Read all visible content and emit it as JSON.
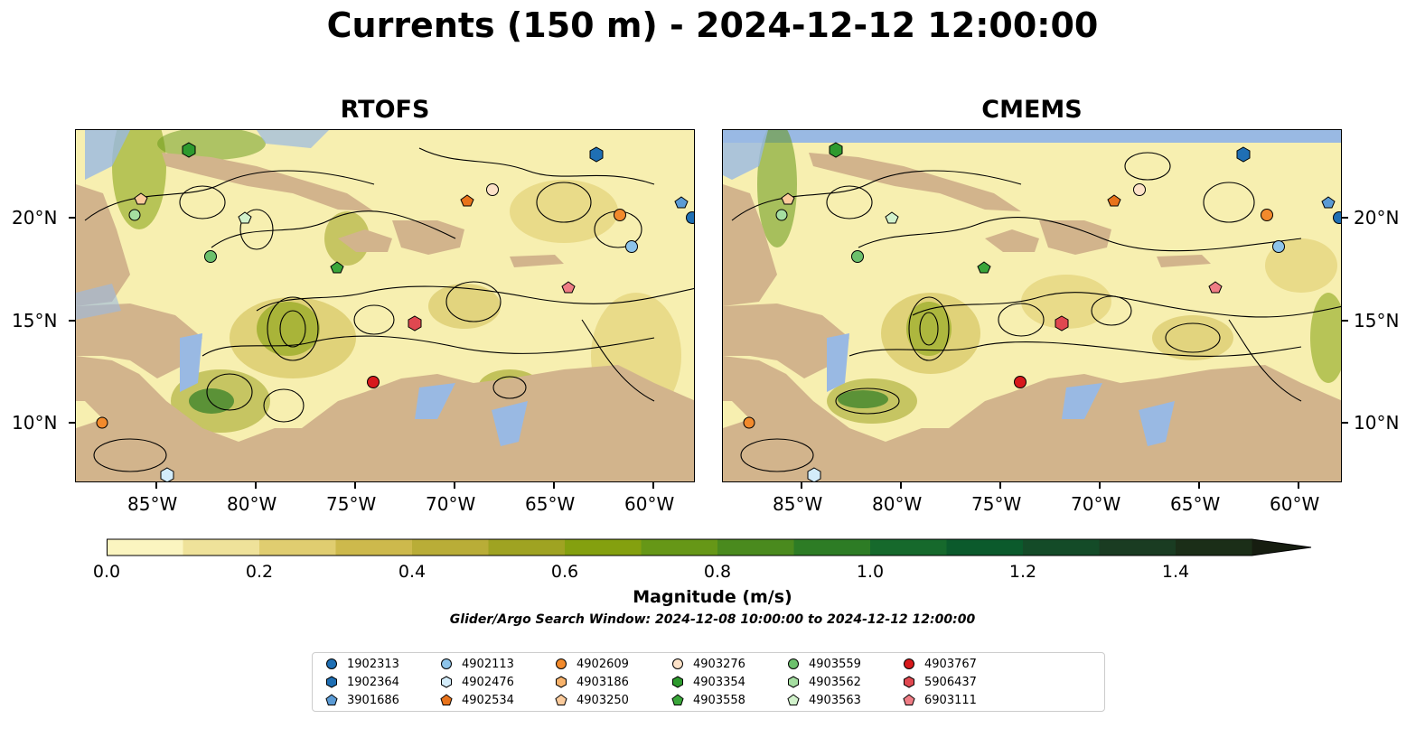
{
  "title": "Currents (150 m) - 2024-12-12 12:00:00",
  "panels": [
    {
      "title": "RTOFS"
    },
    {
      "title": "CMEMS"
    }
  ],
  "axes": {
    "lon_ticks": [
      "85°W",
      "80°W",
      "75°W",
      "70°W",
      "65°W",
      "60°W"
    ],
    "lat_ticks": [
      "20°N",
      "15°N",
      "10°N"
    ]
  },
  "colorbar": {
    "title": "Magnitude (m/s)",
    "tick_labels": [
      "0.0",
      "0.2",
      "0.4",
      "0.6",
      "0.8",
      "1.0",
      "1.2",
      "1.4"
    ],
    "colors": [
      "#fbf5c0",
      "#efe29a",
      "#e0cd70",
      "#cdb94c",
      "#b9ad37",
      "#9fa322",
      "#84a00f",
      "#669717",
      "#4a8a1e",
      "#2d7c25",
      "#16692c",
      "#0b5a2c",
      "#144b28",
      "#1a3c22",
      "#1b2e18",
      "#161d10"
    ],
    "extend": "max"
  },
  "search_window": "Glider/Argo Search Window: 2024-12-08 10:00:00 to 2024-12-12 12:00:00",
  "legend": [
    {
      "label": "1902313",
      "marker": "circle",
      "color": "#1f6fb4"
    },
    {
      "label": "1902364",
      "marker": "hexagon",
      "color": "#1f6fb4"
    },
    {
      "label": "3901686",
      "marker": "pentagon",
      "color": "#5b9bd5"
    },
    {
      "label": "4902113",
      "marker": "circle",
      "color": "#8dc4ea"
    },
    {
      "label": "4902476",
      "marker": "hexagon",
      "color": "#d3ecfa"
    },
    {
      "label": "4902534",
      "marker": "pentagon",
      "color": "#e8731b"
    },
    {
      "label": "4902609",
      "marker": "circle",
      "color": "#f28a2c"
    },
    {
      "label": "4903186",
      "marker": "hexagon",
      "color": "#f7b26b"
    },
    {
      "label": "4903250",
      "marker": "pentagon",
      "color": "#fbcb9c"
    },
    {
      "label": "4903276",
      "marker": "circle",
      "color": "#fde2c8"
    },
    {
      "label": "4903354",
      "marker": "hexagon",
      "color": "#2e9a2e"
    },
    {
      "label": "4903558",
      "marker": "pentagon",
      "color": "#3aa63a"
    },
    {
      "label": "4903559",
      "marker": "circle",
      "color": "#6cc06c"
    },
    {
      "label": "4903562",
      "marker": "hexagon",
      "color": "#a5dea1"
    },
    {
      "label": "4903563",
      "marker": "pentagon",
      "color": "#d2f2cc"
    },
    {
      "label": "4903767",
      "marker": "circle",
      "color": "#d7191c"
    },
    {
      "label": "5906437",
      "marker": "hexagon",
      "color": "#e04850"
    },
    {
      "label": "6903111",
      "marker": "pentagon",
      "color": "#ef7d85"
    }
  ],
  "map_colors": {
    "land": "#d2b48c",
    "shallow_water": "#99b9e3",
    "ocean": "#f7efb0",
    "current_mid": "#cdb94c",
    "current_strong": "#669717",
    "current_very_strong": "#2d7c25"
  }
}
